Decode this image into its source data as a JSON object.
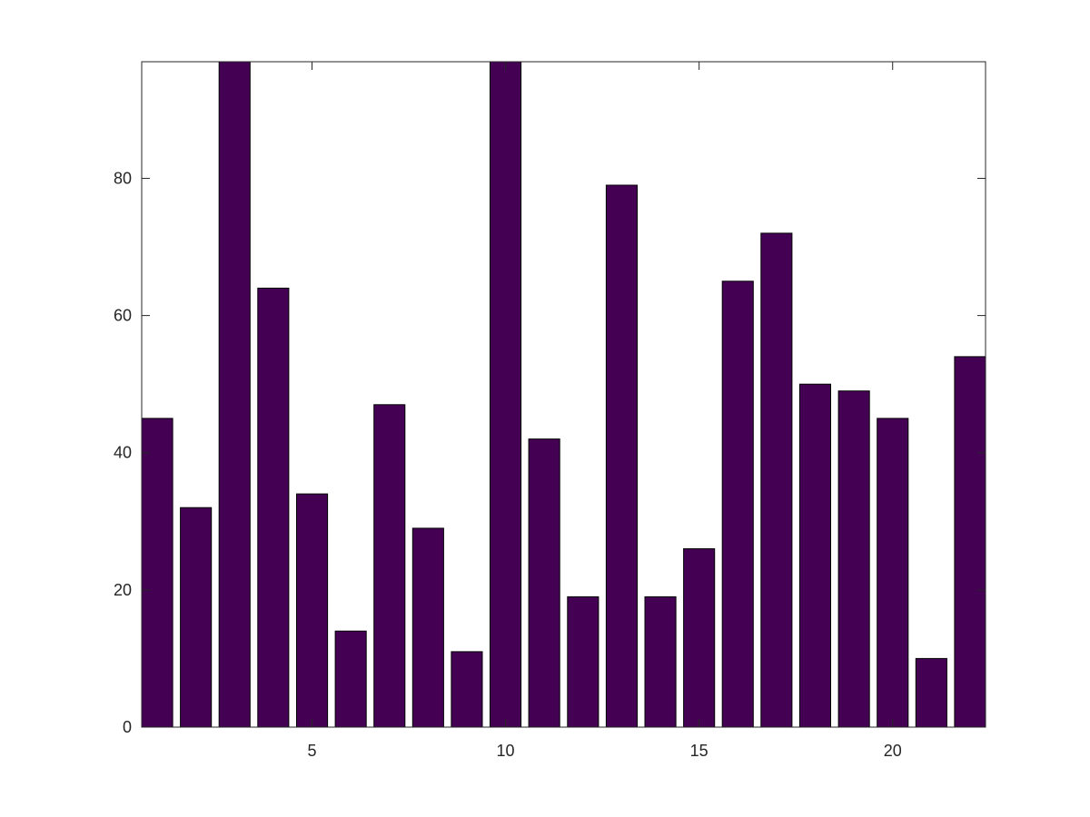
{
  "chart_data": {
    "type": "bar",
    "title": "",
    "xlabel": "",
    "ylabel": "",
    "x": [
      1,
      2,
      3,
      4,
      5,
      6,
      7,
      8,
      9,
      10,
      11,
      12,
      13,
      14,
      15,
      16,
      17,
      18,
      19,
      20,
      21,
      22
    ],
    "values": [
      45,
      32,
      97,
      64,
      34,
      14,
      47,
      29,
      11,
      97,
      42,
      19,
      79,
      19,
      26,
      65,
      72,
      50,
      49,
      45,
      10,
      54
    ],
    "xlim": [
      0.6,
      22.4
    ],
    "ylim": [
      0,
      97
    ],
    "xticks": [
      5,
      10,
      15,
      20
    ],
    "yticks": [
      0,
      20,
      40,
      60,
      80
    ],
    "bar_color": "#440154",
    "grid": false
  }
}
